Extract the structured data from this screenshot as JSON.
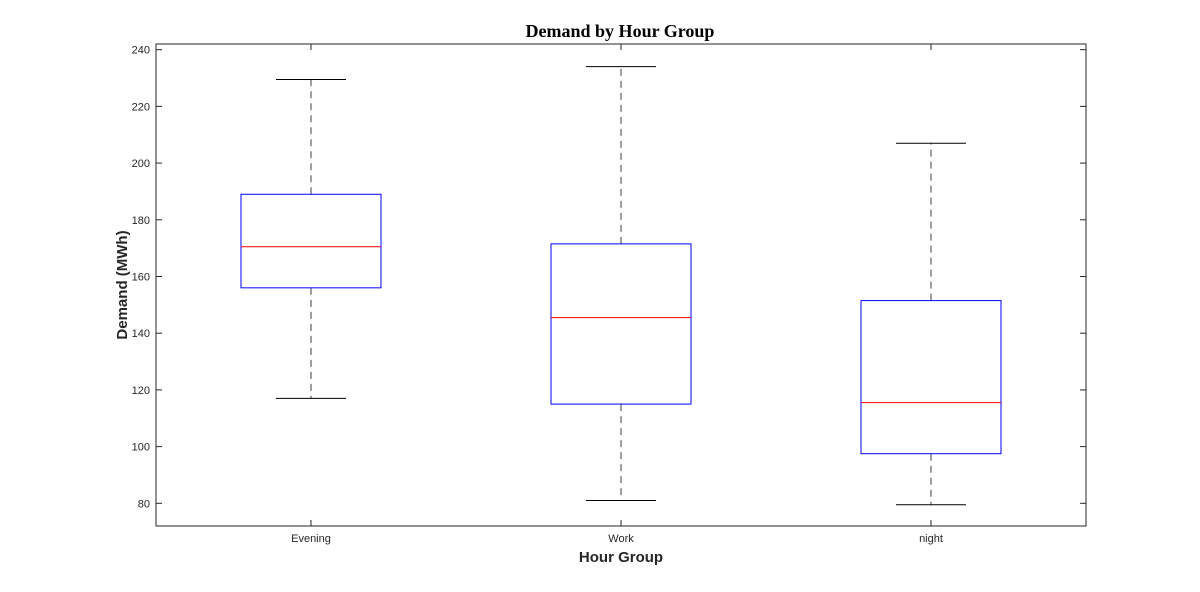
{
  "chart_data": {
    "type": "boxplot",
    "title": "Demand by Hour Group",
    "xlabel": "Hour Group",
    "ylabel": "Demand (MWh)",
    "ylim": [
      72,
      242
    ],
    "yticks": [
      80,
      100,
      120,
      140,
      160,
      180,
      200,
      220,
      240
    ],
    "categories": [
      "Evening",
      "Work",
      "night"
    ],
    "boxes": [
      {
        "category": "Evening",
        "whisker_low": 117,
        "q1": 156,
        "median": 170.5,
        "q3": 189,
        "whisker_high": 229.5
      },
      {
        "category": "Work",
        "whisker_low": 81,
        "q1": 115,
        "median": 145.5,
        "q3": 171.5,
        "whisker_high": 234
      },
      {
        "category": "night",
        "whisker_low": 79.5,
        "q1": 97.5,
        "median": 115.5,
        "q3": 151.5,
        "whisker_high": 207
      }
    ],
    "grid": false,
    "colors": {
      "box": "#0000ff",
      "median": "#ff0000",
      "whisker": "#000000",
      "axes": "#262626"
    }
  }
}
